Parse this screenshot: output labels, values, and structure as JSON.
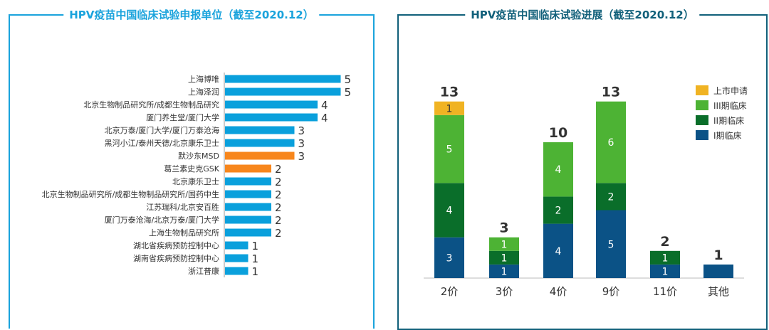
{
  "chart_data": [
    {
      "type": "bar",
      "orientation": "horizontal",
      "title": "HPV疫苗中国临床试验申报单位（截至2020.12）",
      "categories": [
        "上海博唯",
        "上海泽润",
        "北京生物制品研究所/成都生物制品研究",
        "厦门养生堂/厦门大学",
        "北京万泰/厦门大学/厦门万泰沧海",
        "黑河小江/泰州天德/北京康乐卫士",
        "默沙东MSD",
        "葛兰素史克GSK",
        "北京康乐卫士",
        "北京生物制品研究所/成都生物制品研究所/国药中生",
        "江苏瑞科/北京安百胜",
        "厦门万泰沧海/北京万泰/厦门大学",
        "上海生物制品研究所",
        "湖北省疾病预防控制中心",
        "湖南省疾病预防控制中心",
        "浙江普康"
      ],
      "values": [
        5,
        5,
        4,
        4,
        3,
        3,
        3,
        2,
        2,
        2,
        2,
        2,
        2,
        1,
        1,
        1
      ],
      "highlight": [
        "默沙东MSD",
        "葛兰素史克GSK"
      ],
      "colors": {
        "default": "#0aa0dc",
        "highlight": "#f7861c"
      },
      "grid": false
    },
    {
      "type": "bar",
      "stacked": true,
      "title": "HPV疫苗中国临床试验进展（截至2020.12）",
      "categories": [
        "2价",
        "3价",
        "4价",
        "9价",
        "11价",
        "其他"
      ],
      "series": [
        {
          "name": "I期临床",
          "values": [
            3,
            1,
            4,
            5,
            1,
            1
          ],
          "color": "#0b5286"
        },
        {
          "name": "II期临床",
          "values": [
            4,
            1,
            2,
            2,
            1,
            0
          ],
          "color": "#0a6e2a"
        },
        {
          "name": "III期临床",
          "values": [
            5,
            1,
            4,
            6,
            0,
            0
          ],
          "color": "#4db334"
        },
        {
          "name": "上市申请",
          "values": [
            1,
            0,
            0,
            0,
            0,
            0
          ],
          "color": "#f0b323"
        }
      ],
      "totals": [
        13,
        3,
        10,
        13,
        2,
        1
      ],
      "legend_position": "right",
      "grid": false
    }
  ]
}
